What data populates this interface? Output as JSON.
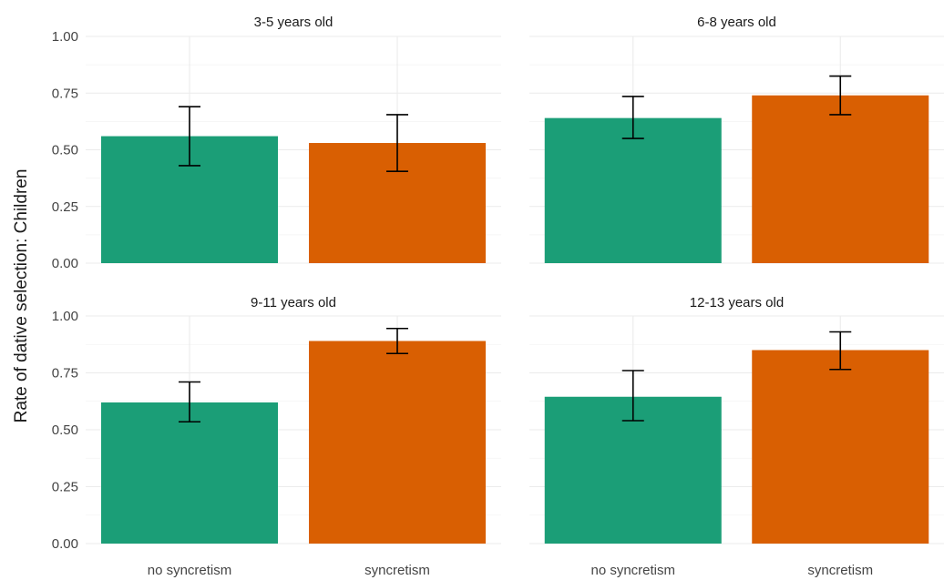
{
  "chart_data": {
    "type": "bar",
    "ylabel": "Rate of dative selection: Children",
    "xlabel": "",
    "ylim": [
      0,
      1.0
    ],
    "yticks": [
      "0.00",
      "0.25",
      "0.50",
      "0.75",
      "1.00"
    ],
    "ytick_values": [
      0,
      0.25,
      0.5,
      0.75,
      1.0
    ],
    "categories": [
      "no syncretism",
      "syncretism"
    ],
    "colors": {
      "no syncretism": "#1b9e77",
      "syncretism": "#d95f02"
    },
    "grid": true,
    "legend": "none",
    "panels": [
      {
        "title": "3-5 years old",
        "values": [
          0.56,
          0.53
        ],
        "error_low": [
          0.43,
          0.405
        ],
        "error_high": [
          0.69,
          0.655
        ]
      },
      {
        "title": "6-8 years old",
        "values": [
          0.64,
          0.74
        ],
        "error_low": [
          0.55,
          0.655
        ],
        "error_high": [
          0.735,
          0.825
        ]
      },
      {
        "title": "9-11 years old",
        "values": [
          0.62,
          0.89
        ],
        "error_low": [
          0.535,
          0.835
        ],
        "error_high": [
          0.71,
          0.945
        ]
      },
      {
        "title": "12-13 years old",
        "values": [
          0.645,
          0.85
        ],
        "error_low": [
          0.54,
          0.765
        ],
        "error_high": [
          0.76,
          0.93
        ]
      }
    ]
  }
}
